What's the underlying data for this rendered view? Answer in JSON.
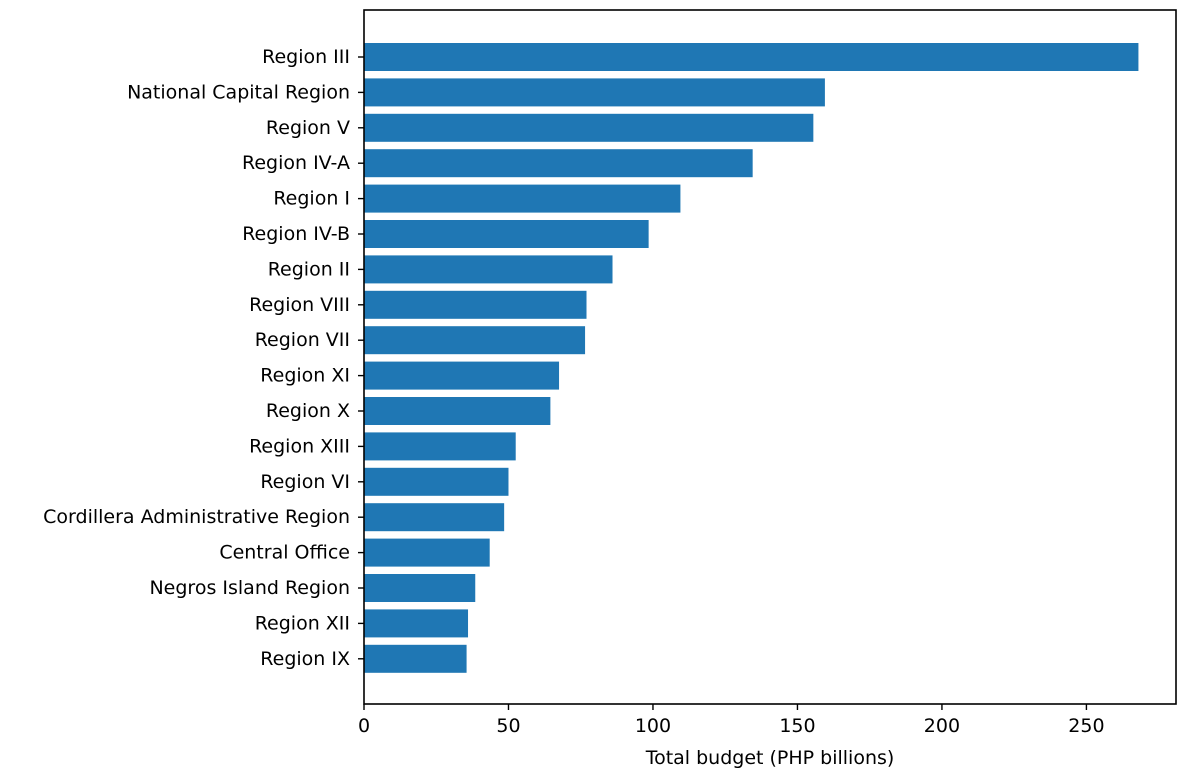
{
  "chart_data": {
    "type": "bar",
    "orientation": "horizontal",
    "categories": [
      "Region III",
      "National Capital Region",
      "Region V",
      "Region IV-A",
      "Region I",
      "Region IV-B",
      "Region II",
      "Region VIII",
      "Region VII",
      "Region XI",
      "Region X",
      "Region XIII",
      "Region VI",
      "Cordillera Administrative Region",
      "Central Office",
      "Negros Island Region",
      "Region XII",
      "Region IX"
    ],
    "values": [
      268,
      159.5,
      155.5,
      134.5,
      109.5,
      98.5,
      86,
      77,
      76.5,
      67.5,
      64.5,
      52.5,
      50,
      48.5,
      43.5,
      38.5,
      36,
      35.5
    ],
    "title": "",
    "xlabel": "Total budget (PHP billions)",
    "ylabel": "",
    "xlim": [
      0,
      281
    ],
    "xticks": [
      0,
      50,
      100,
      150,
      200,
      250
    ],
    "xtick_labels": [
      "0",
      "50",
      "100",
      "150",
      "200",
      "250"
    ],
    "grid": false,
    "legend": false,
    "colors": {
      "bar": "#1f77b4",
      "axis": "#000000"
    }
  }
}
